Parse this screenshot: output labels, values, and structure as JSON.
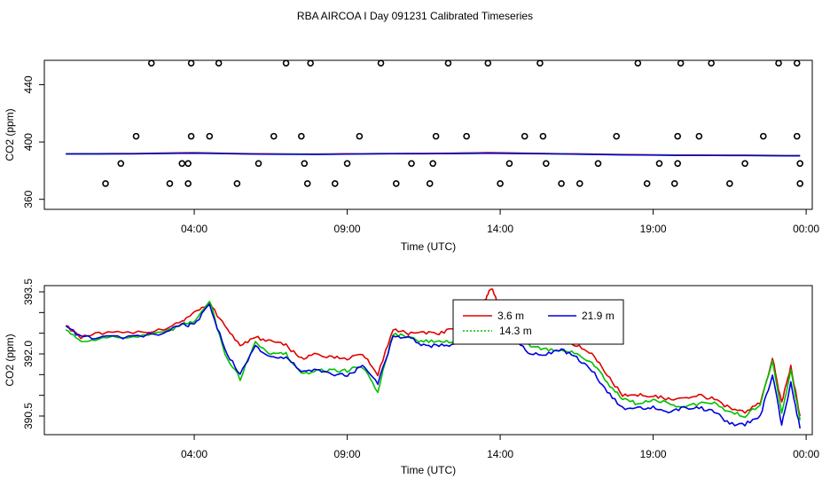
{
  "figure_title": "RBA AIRCOA I  Day 091231  Calibrated Timeseries",
  "colors": {
    "red": "#e00000",
    "green": "#00c000",
    "blue": "#0000e0",
    "black": "#000000"
  },
  "chart_data": [
    {
      "type": "scatter+line",
      "title": "",
      "xlabel": "Time (UTC)",
      "ylabel": "CO2 (ppm)",
      "x_unit": "hours since 00:00 UTC, 2009-12-31",
      "xlim": [
        -0.9,
        24.2
      ],
      "ylim": [
        353,
        457
      ],
      "xticks": [
        {
          "value": 4,
          "label": "04:00"
        },
        {
          "value": 9,
          "label": "09:00"
        },
        {
          "value": 14,
          "label": "14:00"
        },
        {
          "value": 19,
          "label": "19:00"
        },
        {
          "value": 24,
          "label": "00:00"
        }
      ],
      "yticks": [
        {
          "value": 360,
          "label": "360"
        },
        {
          "value": 400,
          "label": "400"
        },
        {
          "value": 440,
          "label": "440"
        }
      ],
      "markers": {
        "style": "open circle",
        "x": [
          1.1,
          1.6,
          2.1,
          2.6,
          3.2,
          3.6,
          3.8,
          3.8,
          3.9,
          3.9,
          4.5,
          4.8,
          5.4,
          6.1,
          6.6,
          7.0,
          7.5,
          7.6,
          7.7,
          7.8,
          8.6,
          9.0,
          9.4,
          10.1,
          10.6,
          11.1,
          11.7,
          11.8,
          11.9,
          12.3,
          12.9,
          13.6,
          14.0,
          14.3,
          14.8,
          15.3,
          15.4,
          15.5,
          16.0,
          16.6,
          17.2,
          17.8,
          18.5,
          18.8,
          19.2,
          19.7,
          19.8,
          19.8,
          19.9,
          20.5,
          20.9,
          21.5,
          22.0,
          22.6,
          23.1,
          23.7,
          23.7,
          23.8,
          23.8
        ],
        "y": [
          371,
          385,
          404,
          455,
          371,
          385,
          371,
          385,
          404,
          455,
          404,
          455,
          371,
          385,
          404,
          455,
          404,
          385,
          371,
          455,
          371,
          385,
          404,
          455,
          371,
          385,
          371,
          385,
          404,
          455,
          404,
          455,
          371,
          385,
          404,
          455,
          404,
          385,
          371,
          371,
          385,
          404,
          455,
          371,
          385,
          371,
          385,
          404,
          455,
          404,
          455,
          371,
          385,
          404,
          455,
          455,
          404,
          385,
          371
        ]
      },
      "series": [
        {
          "name": "3.6 m",
          "color": "#e00000",
          "x": [
            -0.2,
            2.0,
            4.0,
            6.0,
            8.0,
            10.0,
            12.0,
            13.6,
            16.0,
            18.0,
            20.0,
            22.0,
            23.8
          ],
          "y": [
            391.9,
            392.0,
            392.6,
            391.8,
            391.6,
            392.0,
            392.1,
            392.6,
            391.9,
            391.3,
            390.9,
            390.8,
            390.6
          ]
        },
        {
          "name": "14.3 m",
          "color": "#00c000",
          "x": [
            -0.2,
            2.0,
            4.0,
            6.0,
            8.0,
            10.0,
            12.0,
            13.6,
            16.0,
            18.0,
            20.0,
            22.0,
            23.8
          ],
          "y": [
            391.7,
            391.8,
            392.3,
            391.6,
            391.4,
            391.8,
            391.9,
            392.2,
            391.7,
            391.1,
            390.7,
            390.6,
            390.4
          ]
        },
        {
          "name": "21.9 m",
          "color": "#0000e0",
          "x": [
            -0.2,
            2.0,
            4.0,
            6.0,
            8.0,
            10.0,
            12.0,
            13.6,
            16.0,
            18.0,
            20.0,
            22.0,
            23.8
          ],
          "y": [
            391.6,
            391.7,
            392.2,
            391.5,
            391.3,
            391.7,
            391.8,
            392.1,
            391.6,
            391.0,
            390.6,
            390.5,
            390.3
          ]
        }
      ]
    },
    {
      "type": "line",
      "title": "",
      "xlabel": "Time (UTC)",
      "ylabel": "CO2 (ppm)",
      "x_unit": "hours since 00:00 UTC, 2009-12-31",
      "xlim": [
        -0.9,
        24.2
      ],
      "ylim": [
        390.05,
        393.65
      ],
      "xticks": [
        {
          "value": 4,
          "label": "04:00"
        },
        {
          "value": 9,
          "label": "09:00"
        },
        {
          "value": 14,
          "label": "14:00"
        },
        {
          "value": 19,
          "label": "19:00"
        },
        {
          "value": 24,
          "label": "00:00"
        }
      ],
      "yticks": [
        {
          "value": 390.5,
          "label": "390.5"
        },
        {
          "value": 391.0,
          "label": ""
        },
        {
          "value": 391.5,
          "label": ""
        },
        {
          "value": 392.0,
          "label": "392.0"
        },
        {
          "value": 392.5,
          "label": ""
        },
        {
          "value": 393.0,
          "label": ""
        },
        {
          "value": 393.5,
          "label": "393.5"
        }
      ],
      "legend": {
        "placement": "top-center",
        "entries": [
          {
            "label": "3.6 m",
            "color": "#e00000"
          },
          {
            "label": "21.9 m",
            "color": "#0000e0"
          },
          {
            "label": "14.3 m",
            "color": "#00c000"
          }
        ]
      },
      "series": [
        {
          "name": "3.6 m",
          "color": "#e00000",
          "x": [
            -0.2,
            0.3,
            1.0,
            2.0,
            3.0,
            3.6,
            4.0,
            4.5,
            5.0,
            5.5,
            6.0,
            6.5,
            7.0,
            7.5,
            8.0,
            8.5,
            9.0,
            9.5,
            10.0,
            10.5,
            11.0,
            11.5,
            12.0,
            12.5,
            13.0,
            13.5,
            13.7,
            14.0,
            14.5,
            15.0,
            15.5,
            16.0,
            16.5,
            17.0,
            17.5,
            18.0,
            18.5,
            19.0,
            19.5,
            20.0,
            20.5,
            21.0,
            21.5,
            22.0,
            22.5,
            22.9,
            23.2,
            23.5,
            23.8
          ],
          "y": [
            392.7,
            392.4,
            392.5,
            392.5,
            392.6,
            392.8,
            393.0,
            393.2,
            392.7,
            392.2,
            392.4,
            392.3,
            392.2,
            391.9,
            392.0,
            391.9,
            391.9,
            392.0,
            391.5,
            392.6,
            392.5,
            392.5,
            392.5,
            392.6,
            392.7,
            393.3,
            393.6,
            393.1,
            392.9,
            392.6,
            392.5,
            392.4,
            392.2,
            392.0,
            391.5,
            391.0,
            391.0,
            391.0,
            390.9,
            390.9,
            391.0,
            390.9,
            390.7,
            390.6,
            390.8,
            391.9,
            390.8,
            391.7,
            390.5
          ]
        },
        {
          "name": "14.3 m",
          "color": "#00c000",
          "x": [
            -0.2,
            0.3,
            1.0,
            2.0,
            3.0,
            3.6,
            4.0,
            4.5,
            5.0,
            5.5,
            6.0,
            6.5,
            7.0,
            7.5,
            8.0,
            8.5,
            9.0,
            9.5,
            10.0,
            10.5,
            11.0,
            11.5,
            12.0,
            12.5,
            13.0,
            13.5,
            13.7,
            14.0,
            14.5,
            15.0,
            15.5,
            16.0,
            16.5,
            17.0,
            17.5,
            18.0,
            18.5,
            19.0,
            19.5,
            20.0,
            20.5,
            21.0,
            21.5,
            22.0,
            22.5,
            22.9,
            23.2,
            23.5,
            23.8
          ],
          "y": [
            392.6,
            392.3,
            392.4,
            392.4,
            392.5,
            392.7,
            392.8,
            393.3,
            392.0,
            391.4,
            392.3,
            392.0,
            392.0,
            391.5,
            391.6,
            391.6,
            391.6,
            391.7,
            391.1,
            392.5,
            392.4,
            392.3,
            392.3,
            392.3,
            392.5,
            392.8,
            392.8,
            392.8,
            392.5,
            392.2,
            392.1,
            392.1,
            392.0,
            391.8,
            391.3,
            390.9,
            390.8,
            390.9,
            390.8,
            390.7,
            390.8,
            390.8,
            390.6,
            390.5,
            390.8,
            391.8,
            390.6,
            391.6,
            390.4
          ]
        },
        {
          "name": "21.9 m",
          "color": "#0000e0",
          "x": [
            -0.2,
            0.3,
            1.0,
            2.0,
            3.0,
            3.6,
            4.0,
            4.5,
            5.0,
            5.5,
            6.0,
            6.5,
            7.0,
            7.5,
            8.0,
            8.5,
            9.0,
            9.5,
            10.0,
            10.5,
            11.0,
            11.5,
            12.0,
            12.5,
            13.0,
            13.5,
            13.7,
            14.0,
            14.5,
            15.0,
            15.5,
            16.0,
            16.5,
            17.0,
            17.5,
            18.0,
            18.5,
            19.0,
            19.5,
            20.0,
            20.5,
            21.0,
            21.5,
            22.0,
            22.5,
            22.9,
            23.2,
            23.5,
            23.8
          ],
          "y": [
            392.7,
            392.4,
            392.4,
            392.4,
            392.5,
            392.7,
            392.7,
            393.2,
            392.1,
            391.5,
            392.2,
            391.9,
            391.9,
            391.6,
            391.6,
            391.5,
            391.5,
            391.7,
            391.3,
            392.4,
            392.4,
            392.2,
            392.2,
            392.2,
            392.4,
            393.0,
            392.8,
            392.6,
            392.3,
            392.0,
            392.0,
            392.1,
            391.9,
            391.6,
            391.1,
            390.7,
            390.7,
            390.7,
            390.6,
            390.7,
            390.7,
            390.6,
            390.3,
            390.3,
            390.5,
            391.5,
            390.3,
            391.3,
            390.2
          ]
        }
      ]
    }
  ]
}
